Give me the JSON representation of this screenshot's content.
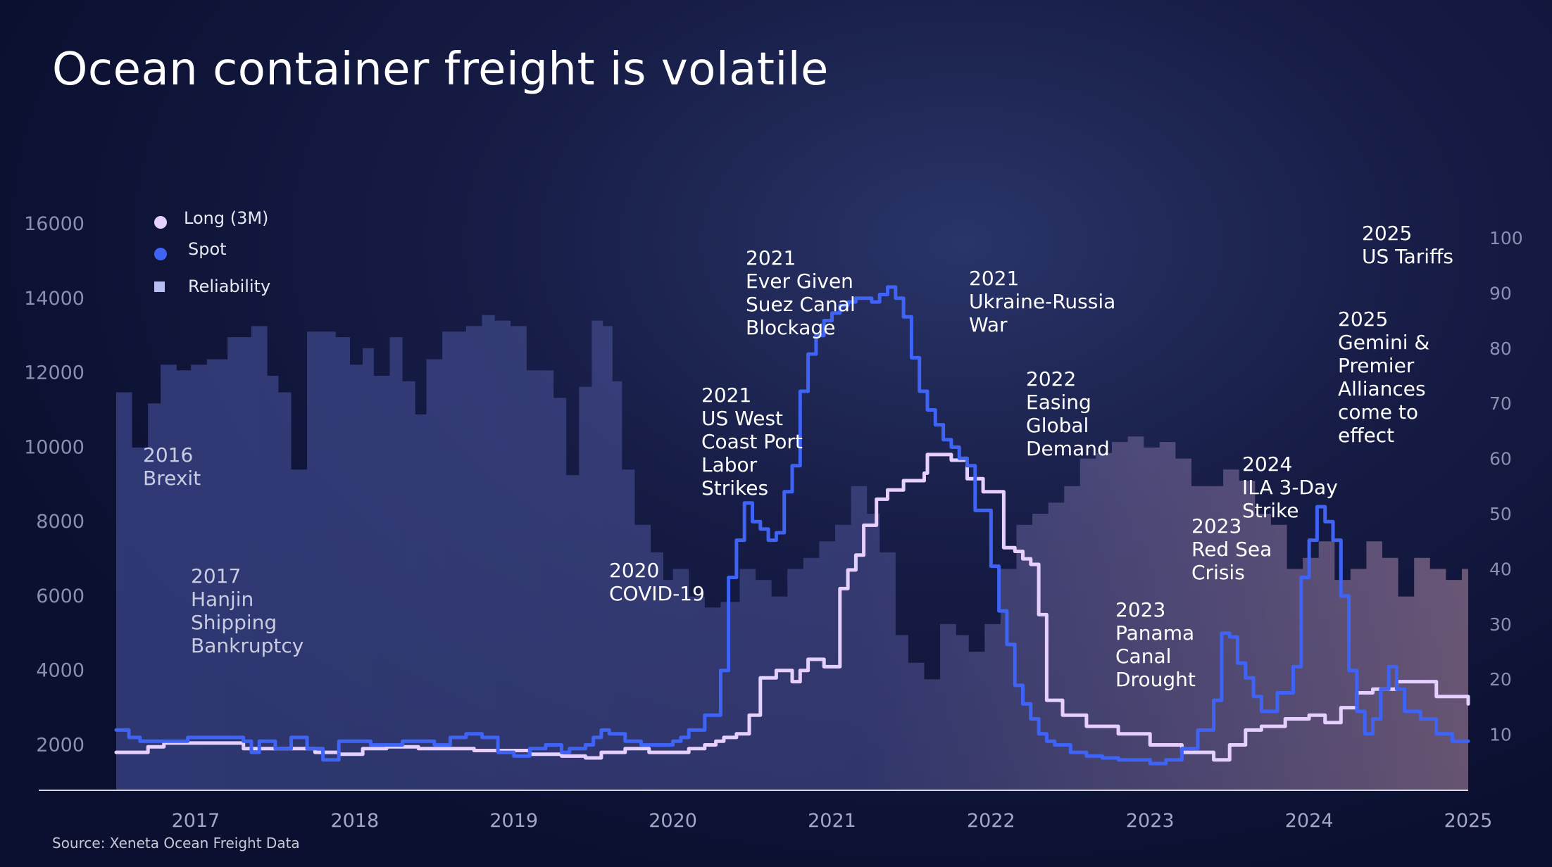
{
  "title": "Ocean container freight is volatile",
  "source": "Source: Xeneta Ocean Freight Data",
  "legend": [
    {
      "label": "Long (3M)",
      "color": "#e6d0ff",
      "shape": "circle"
    },
    {
      "label": "Spot",
      "color": "#3f63f5",
      "shape": "circle"
    },
    {
      "label": "Reliability",
      "color": "#b8bff0",
      "shape": "square"
    }
  ],
  "annotations": [
    {
      "text": "2016\nBrexit",
      "year": 2016.67,
      "value": 10100,
      "style": "dim"
    },
    {
      "text": "2017\nHanjin\nShipping\nBankruptcy",
      "year": 2016.97,
      "value": 6850,
      "style": "dim"
    },
    {
      "text": "2020\nCOVID-19",
      "year": 2019.6,
      "value": 7000,
      "style": "bright"
    },
    {
      "text": "2021\nUS West\nCoast Port\nLabor\nStrikes",
      "year": 2020.18,
      "value": 11700,
      "style": "bright"
    },
    {
      "text": "2021\nEver Given\nSuez Canal\nBlockage",
      "year": 2020.46,
      "value": 15400,
      "style": "bright"
    },
    {
      "text": "2021\nUkraine-Russia\nWar",
      "year": 2021.86,
      "value": 14850,
      "style": "bright"
    },
    {
      "text": "2022\nEasing\nGlobal\nDemand",
      "year": 2022.22,
      "value": 12150,
      "style": "bright"
    },
    {
      "text": "2023\nPanama\nCanal\nDrought",
      "year": 2022.78,
      "value": 5950,
      "style": "bright"
    },
    {
      "text": "2023\nRed Sea\nCrisis",
      "year": 2023.26,
      "value": 8200,
      "style": "bright"
    },
    {
      "text": "2024\nILA 3-Day\nStrike",
      "year": 2023.58,
      "value": 9850,
      "style": "bright"
    },
    {
      "text": "2025\nGemini &\nPremier\nAlliances\ncome to\neffect",
      "year": 2024.18,
      "value": 13750,
      "style": "bright"
    },
    {
      "text": "2025\nUS Tariffs",
      "year": 2024.33,
      "value": 16050,
      "style": "bright"
    }
  ],
  "chart_data": {
    "type": "line",
    "x_axis": {
      "min": 2016.5,
      "max": 2025.0,
      "ticks": [
        2017,
        2018,
        2019,
        2020,
        2021,
        2022,
        2023,
        2024,
        2025
      ]
    },
    "y_axis_left": {
      "min": 800,
      "max": 16000,
      "ticks": [
        2000,
        4000,
        6000,
        8000,
        10000,
        12000,
        14000,
        16000
      ]
    },
    "y_axis_right": {
      "min": 0,
      "max": 100,
      "ticks": [
        10,
        20,
        30,
        40,
        50,
        60,
        70,
        80,
        90,
        100
      ]
    },
    "series": [
      {
        "name": "Reliability",
        "axis": "right",
        "style": "step-area",
        "color": "#6d78c8",
        "x": [
          2016.5,
          2016.6,
          2016.7,
          2016.78,
          2016.88,
          2016.97,
          2017.07,
          2017.2,
          2017.35,
          2017.45,
          2017.52,
          2017.6,
          2017.7,
          2017.78,
          2017.88,
          2017.97,
          2018.05,
          2018.12,
          2018.22,
          2018.3,
          2018.38,
          2018.45,
          2018.55,
          2018.62,
          2018.7,
          2018.8,
          2018.88,
          2018.98,
          2019.08,
          2019.18,
          2019.25,
          2019.33,
          2019.41,
          2019.49,
          2019.56,
          2019.62,
          2019.68,
          2019.76,
          2019.86,
          2019.94,
          2020.0,
          2020.1,
          2020.2,
          2020.3,
          2020.42,
          2020.52,
          2020.62,
          2020.72,
          2020.82,
          2020.92,
          2021.02,
          2021.12,
          2021.22,
          2021.3,
          2021.4,
          2021.48,
          2021.58,
          2021.68,
          2021.78,
          2021.86,
          2021.96,
          2022.06,
          2022.16,
          2022.26,
          2022.36,
          2022.46,
          2022.56,
          2022.66,
          2022.76,
          2022.86,
          2022.96,
          2023.06,
          2023.16,
          2023.26,
          2023.36,
          2023.46,
          2023.56,
          2023.66,
          2023.76,
          2023.86,
          2023.96,
          2024.06,
          2024.16,
          2024.26,
          2024.36,
          2024.46,
          2024.56,
          2024.66,
          2024.76,
          2024.86,
          2024.96,
          2025.0
        ],
        "y": [
          72,
          62,
          70,
          77,
          76,
          77,
          78,
          82,
          84,
          75,
          72,
          58,
          83,
          83,
          82,
          77,
          80,
          75,
          82,
          74,
          68,
          78,
          83,
          83,
          84,
          86,
          85,
          84,
          76,
          76,
          71,
          57,
          73,
          85,
          84,
          74,
          58,
          48,
          43,
          38,
          40,
          35,
          33,
          34,
          40,
          38,
          35,
          40,
          42,
          45,
          48,
          55,
          50,
          43,
          28,
          23,
          20,
          30,
          28,
          25,
          30,
          40,
          48,
          50,
          52,
          55,
          60,
          61,
          63,
          64,
          62,
          63,
          60,
          55,
          55,
          58,
          56,
          50,
          48,
          40,
          42,
          45,
          38,
          40,
          45,
          42,
          35,
          42,
          40,
          38,
          40,
          40
        ]
      },
      {
        "name": "Long (3M)",
        "axis": "left",
        "style": "step",
        "color": "#e6d0ff",
        "x": [
          2016.5,
          2016.62,
          2016.7,
          2016.8,
          2017.0,
          2017.3,
          2017.45,
          2017.6,
          2017.75,
          2017.9,
          2018.05,
          2018.2,
          2018.4,
          2018.6,
          2018.75,
          2018.9,
          2019.1,
          2019.3,
          2019.45,
          2019.55,
          2019.7,
          2019.85,
          2020.0,
          2020.1,
          2020.2,
          2020.27,
          2020.32,
          2020.4,
          2020.48,
          2020.55,
          2020.65,
          2020.75,
          2020.8,
          2020.85,
          2020.95,
          2021.0,
          2021.05,
          2021.1,
          2021.15,
          2021.2,
          2021.28,
          2021.35,
          2021.45,
          2021.58,
          2021.6,
          2021.68,
          2021.75,
          2021.85,
          2021.95,
          2022.08,
          2022.15,
          2022.2,
          2022.25,
          2022.3,
          2022.35,
          2022.45,
          2022.6,
          2022.8,
          2023.0,
          2023.2,
          2023.4,
          2023.5,
          2023.6,
          2023.7,
          2023.85,
          2024.0,
          2024.1,
          2024.2,
          2024.3,
          2024.4,
          2024.55,
          2024.8,
          2025.0
        ],
        "y": [
          1800,
          1800,
          1950,
          2050,
          2050,
          1900,
          1900,
          1900,
          1800,
          1750,
          1900,
          1950,
          1900,
          1900,
          1850,
          1850,
          1750,
          1700,
          1650,
          1800,
          1900,
          1800,
          1800,
          1900,
          2000,
          2100,
          2200,
          2300,
          2800,
          3800,
          4000,
          3700,
          4000,
          4300,
          4100,
          4100,
          6200,
          6700,
          7100,
          7900,
          8600,
          8850,
          9100,
          9300,
          9800,
          9800,
          9650,
          9150,
          8800,
          7300,
          7200,
          7000,
          6850,
          5500,
          3200,
          2800,
          2500,
          2300,
          2000,
          1800,
          1600,
          2000,
          2400,
          2500,
          2700,
          2800,
          2600,
          3000,
          3400,
          3500,
          3700,
          3300,
          3100
        ],
        "note": "values on left axis (USD/FEU-like scale)"
      },
      {
        "name": "Spot",
        "axis": "left",
        "style": "step",
        "color": "#3f63f5",
        "x": [
          2016.5,
          2016.58,
          2016.65,
          2016.8,
          2016.95,
          2017.2,
          2017.3,
          2017.35,
          2017.4,
          2017.5,
          2017.6,
          2017.7,
          2017.8,
          2017.9,
          2018.0,
          2018.1,
          2018.3,
          2018.5,
          2018.6,
          2018.7,
          2018.8,
          2018.9,
          2019.0,
          2019.1,
          2019.2,
          2019.3,
          2019.35,
          2019.45,
          2019.5,
          2019.55,
          2019.6,
          2019.7,
          2019.8,
          2019.9,
          2020.0,
          2020.05,
          2020.1,
          2020.2,
          2020.3,
          2020.35,
          2020.4,
          2020.45,
          2020.5,
          2020.55,
          2020.6,
          2020.65,
          2020.7,
          2020.75,
          2020.8,
          2020.85,
          2020.9,
          2020.95,
          2021.0,
          2021.05,
          2021.1,
          2021.15,
          2021.2,
          2021.25,
          2021.3,
          2021.35,
          2021.4,
          2021.45,
          2021.5,
          2021.55,
          2021.6,
          2021.65,
          2021.7,
          2021.75,
          2021.8,
          2021.85,
          2021.9,
          2022.0,
          2022.05,
          2022.1,
          2022.15,
          2022.2,
          2022.25,
          2022.3,
          2022.35,
          2022.4,
          2022.5,
          2022.6,
          2022.7,
          2022.8,
          2022.9,
          2023.0,
          2023.1,
          2023.2,
          2023.3,
          2023.4,
          2023.45,
          2023.5,
          2023.55,
          2023.6,
          2023.65,
          2023.7,
          2023.8,
          2023.9,
          2023.95,
          2024.0,
          2024.05,
          2024.1,
          2024.15,
          2024.2,
          2024.25,
          2024.3,
          2024.35,
          2024.4,
          2024.45,
          2024.5,
          2024.55,
          2024.6,
          2024.7,
          2024.8,
          2024.9,
          2025.0
        ],
        "y": [
          2400,
          2200,
          2100,
          2100,
          2200,
          2200,
          2100,
          1800,
          2100,
          1900,
          2200,
          1900,
          1600,
          2100,
          2100,
          2000,
          2100,
          2000,
          2200,
          2300,
          2200,
          1800,
          1700,
          1900,
          2000,
          1800,
          1900,
          2000,
          2200,
          2400,
          2300,
          2100,
          2000,
          2000,
          2100,
          2200,
          2400,
          2800,
          4000,
          6500,
          7500,
          8500,
          8000,
          7800,
          7500,
          7700,
          8800,
          9500,
          11500,
          12500,
          13000,
          13400,
          13600,
          13800,
          13900,
          14000,
          14000,
          13900,
          14100,
          14300,
          14000,
          13500,
          12400,
          11500,
          11000,
          10600,
          10200,
          10000,
          9700,
          9500,
          8300,
          6800,
          5600,
          4700,
          3600,
          3100,
          2700,
          2300,
          2100,
          2000,
          1800,
          1700,
          1650,
          1600,
          1600,
          1500,
          1600,
          1900,
          2400,
          3200,
          5000,
          4900,
          4200,
          3800,
          3300,
          2900,
          3400,
          4100,
          6500,
          7500,
          8400,
          8000,
          7500,
          6000,
          4000,
          2900,
          2300,
          2700,
          3500,
          4100,
          3500,
          2900,
          2700,
          2300,
          2100,
          2100
        ]
      }
    ]
  }
}
